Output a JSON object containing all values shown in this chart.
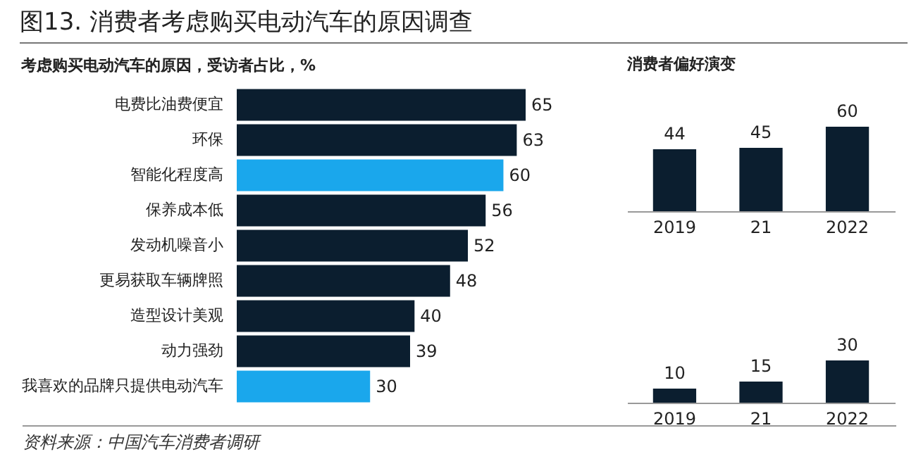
{
  "chart_data": [
    {
      "type": "bar",
      "orientation": "horizontal",
      "title": "图13. 消费者考虑购买电动汽车的原因调查",
      "subtitle": "考虑购买电动汽车的原因，受访者占比，%",
      "categories": [
        "电费比油费便宜",
        "环保",
        "智能化程度高",
        "保养成本低",
        "发动机噪音小",
        "更易获取车辆牌照",
        "造型设计美观",
        "动力强劲",
        "我喜欢的品牌只提供电动汽车"
      ],
      "values": [
        65,
        63,
        60,
        56,
        52,
        48,
        40,
        39,
        30
      ],
      "colors": [
        "#0b1e2f",
        "#0b1e2f",
        "#1aa7ec",
        "#0b1e2f",
        "#0b1e2f",
        "#0b1e2f",
        "#0b1e2f",
        "#0b1e2f",
        "#1aa7ec"
      ],
      "data_labels": true,
      "annotations": [
        "资料来源：中国汽车消费者调研"
      ]
    },
    {
      "type": "bar",
      "title": "消费者偏好演变",
      "categories": [
        "2019",
        "21",
        "2022"
      ],
      "values": [
        44,
        45,
        60
      ],
      "color": "#0b1e2f",
      "data_labels": true
    },
    {
      "type": "bar",
      "categories": [
        "2019",
        "21",
        "2022"
      ],
      "values": [
        10,
        15,
        30
      ],
      "color": "#0b1e2f",
      "data_labels": true
    }
  ]
}
